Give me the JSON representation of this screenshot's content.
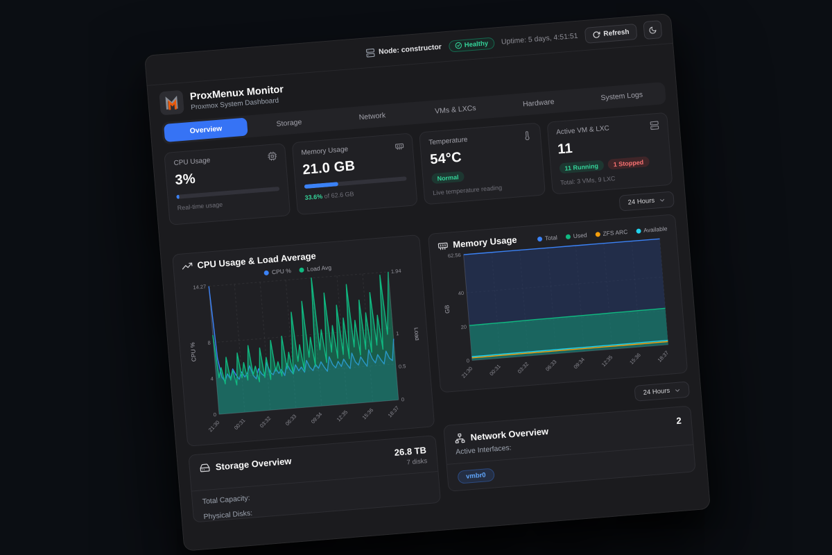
{
  "topbar": {
    "node_label": "Node: constructor",
    "health_label": "Healthy",
    "uptime": "Uptime: 5 days, 4:51:51",
    "refresh_label": "Refresh"
  },
  "header": {
    "title": "ProxMenux Monitor",
    "subtitle": "Proxmox System Dashboard"
  },
  "tabs": {
    "active_index": 0,
    "items": [
      "Overview",
      "Storage",
      "Network",
      "VMs & LXCs",
      "Hardware",
      "System Logs"
    ]
  },
  "stats": {
    "cpu": {
      "title": "CPU Usage",
      "value": "3%",
      "percent": 3,
      "caption": "Real-time usage"
    },
    "memory": {
      "title": "Memory Usage",
      "value": "21.0 GB",
      "percent": 33.6,
      "caption_percent": "33.6%",
      "caption_suffix": " of 62.6 GB"
    },
    "temperature": {
      "title": "Temperature",
      "value": "54°C",
      "badge": "Normal",
      "caption": "Live temperature reading"
    },
    "vms": {
      "title": "Active VM & LXC",
      "value": "11",
      "running": "11 Running",
      "stopped": "1 Stopped",
      "caption": "Total: 3 VMs, 9 LXC"
    }
  },
  "range_selector": {
    "label": "24 Hours"
  },
  "storage": {
    "title": "Storage Overview",
    "value": "26.8 TB",
    "subvalue": "7 disks",
    "rows": [
      "Total Capacity:",
      "Physical Disks:"
    ]
  },
  "network": {
    "title": "Network Overview",
    "value": "2",
    "rows": [
      "Active Interfaces:"
    ],
    "interface_badge": "vmbr0"
  },
  "colors": {
    "accent_blue": "#3673f5",
    "success_green": "#10b981",
    "danger_red": "#ef4444",
    "warning_orange": "#f59e0b",
    "cyan": "#22d3ee",
    "logo_orange": "#e8590c"
  },
  "chart_data": [
    {
      "type": "line",
      "title": "CPU Usage & Load Average",
      "x": [
        "21:30",
        "00:31",
        "03:32",
        "06:33",
        "09:34",
        "12:35",
        "15:36",
        "18:37"
      ],
      "ylabel": "CPU %",
      "y2label": "Load",
      "ylim": [
        0,
        14.27
      ],
      "y2lim": [
        0,
        1.94
      ],
      "yticks": [
        0,
        4,
        8,
        14.27
      ],
      "y2ticks": [
        0,
        0.5,
        1,
        1.94
      ],
      "grid": true,
      "legend_position": "top-center",
      "series": [
        {
          "name": "CPU %",
          "color": "#3b82f6",
          "axis": "y",
          "fill": "rgba(59,130,246,0.18)",
          "values": [
            14.27,
            6.2,
            4.1,
            3.6,
            4.4,
            3.8,
            4.9,
            4.2,
            3.7,
            4.5,
            3.9,
            4.3,
            5.1,
            4.0,
            3.6,
            4.7,
            4.1,
            3.8,
            5.3,
            4.2,
            3.9,
            4.6,
            4.0,
            4.4,
            3.7,
            5.0,
            4.3,
            3.8,
            4.8,
            4.1,
            4.5,
            3.9,
            5.2,
            4.4,
            4.0,
            4.7,
            4.2,
            4.9,
            4.3,
            3.8,
            5.4,
            4.5,
            4.1,
            4.8,
            4.2,
            5.0,
            4.4,
            3.9,
            5.6,
            4.6,
            4.2,
            5.1,
            4.5,
            4.0,
            5.8,
            4.8,
            4.3,
            5.2,
            4.6,
            4.1,
            5.5,
            4.7,
            4.4,
            6.8
          ]
        },
        {
          "name": "Load Avg",
          "color": "#10b981",
          "axis": "y2",
          "fill": "rgba(16,185,129,0.4)",
          "values": [
            1.2,
            0.55,
            0.7,
            0.45,
            0.85,
            0.5,
            0.65,
            0.42,
            0.9,
            0.52,
            0.75,
            0.48,
            1.0,
            0.55,
            0.68,
            0.44,
            0.95,
            0.5,
            0.8,
            0.46,
            1.05,
            0.58,
            0.72,
            0.5,
            1.1,
            0.6,
            0.85,
            0.52,
            1.45,
            0.7,
            0.95,
            0.55,
            1.6,
            0.75,
            1.05,
            0.6,
            1.94,
            0.85,
            1.15,
            0.65,
            1.7,
            0.8,
            1.2,
            0.7,
            1.5,
            0.75,
            1.3,
            0.68,
            1.8,
            0.85,
            1.25,
            0.72,
            1.55,
            0.8,
            1.35,
            0.75,
            1.65,
            0.85,
            1.3,
            0.78,
            1.9,
            1.0,
            1.45,
            1.94
          ]
        }
      ]
    },
    {
      "type": "area",
      "title": "Memory Usage",
      "x": [
        "21:30",
        "00:31",
        "03:32",
        "06:33",
        "09:34",
        "12:35",
        "15:36",
        "18:37"
      ],
      "ylabel": "GB",
      "ylim": [
        0,
        62.56
      ],
      "yticks": [
        0,
        20,
        40,
        62.56
      ],
      "grid": true,
      "legend_position": "top-right",
      "series": [
        {
          "name": "Total",
          "color": "#3b82f6",
          "axis": "y",
          "fill": "rgba(37,56,104,0.55)",
          "values": [
            62.56,
            62.56,
            62.56,
            62.56,
            62.56,
            62.56,
            62.56,
            62.56,
            62.56,
            62.56,
            62.56,
            62.56,
            62.56,
            62.56,
            62.56,
            62.56
          ]
        },
        {
          "name": "Used",
          "color": "#10b981",
          "axis": "y",
          "fill": "rgba(16,185,129,0.4)",
          "values": [
            20.6,
            20.7,
            20.8,
            20.8,
            20.9,
            21.0,
            21.0,
            21.1,
            21.1,
            21.2,
            21.2,
            21.3,
            21.3,
            21.4,
            21.4,
            21.5
          ]
        },
        {
          "name": "ZFS ARC",
          "color": "#f59e0b",
          "axis": "y",
          "values": [
            1.5,
            1.5,
            1.55,
            1.55,
            1.6,
            1.6,
            1.6,
            1.65,
            1.65,
            1.65,
            1.7,
            1.7,
            1.7,
            1.7,
            1.75,
            1.75
          ]
        },
        {
          "name": "Available",
          "color": "#22d3ee",
          "axis": "y",
          "values": [
            2.2,
            2.2,
            2.25,
            2.25,
            2.3,
            2.3,
            2.3,
            2.35,
            2.35,
            2.35,
            2.4,
            2.4,
            2.4,
            2.45,
            2.45,
            2.5
          ]
        }
      ]
    }
  ]
}
